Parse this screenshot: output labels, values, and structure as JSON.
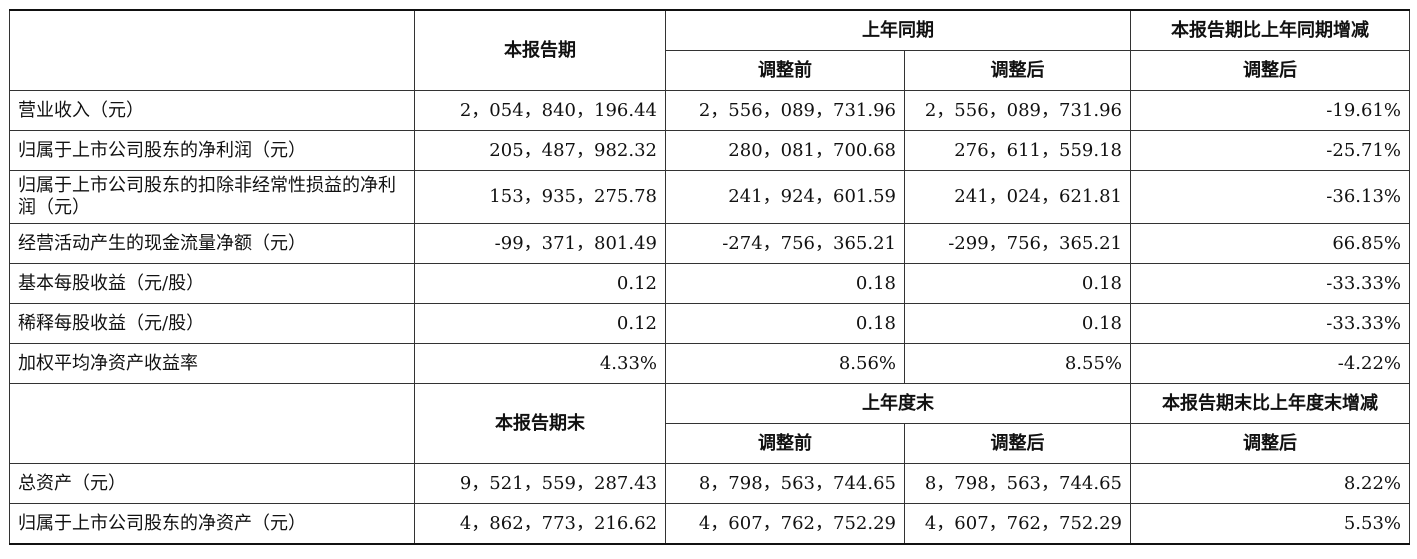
{
  "header1": {
    "current_period": "本报告期",
    "prior_period": "上年同期",
    "change": "本报告期比上年同期增减",
    "before_adjust": "调整前",
    "after_adjust": "调整后",
    "change_adjusted": "调整后"
  },
  "rows1": [
    {
      "label": "营业收入（元）",
      "current": "2，054，840，196.44",
      "before": "2，556，089，731.96",
      "after": "2，556，089，731.96",
      "change": "-19.61%"
    },
    {
      "label": "归属于上市公司股东的净利润（元）",
      "current": "205，487，982.32",
      "before": "280，081，700.68",
      "after": "276，611，559.18",
      "change": "-25.71%"
    },
    {
      "label": "归属于上市公司股东的扣除非经常性损益的净利润（元）",
      "current": "153，935，275.78",
      "before": "241，924，601.59",
      "after": "241，024，621.81",
      "change": "-36.13%"
    },
    {
      "label": "经营活动产生的现金流量净额（元）",
      "current": "-99，371，801.49",
      "before": "-274，756，365.21",
      "after": "-299，756，365.21",
      "change": "66.85%"
    },
    {
      "label": "基本每股收益（元/股）",
      "current": "0.12",
      "before": "0.18",
      "after": "0.18",
      "change": "-33.33%"
    },
    {
      "label": "稀释每股收益（元/股）",
      "current": "0.12",
      "before": "0.18",
      "after": "0.18",
      "change": "-33.33%"
    },
    {
      "label": "加权平均净资产收益率",
      "current": "4.33%",
      "before": "8.56%",
      "after": "8.55%",
      "change": "-4.22%"
    }
  ],
  "header2": {
    "current_period_end": "本报告期末",
    "prior_year_end": "上年度末",
    "change": "本报告期末比上年度末增减",
    "before_adjust": "调整前",
    "after_adjust": "调整后",
    "change_adjusted": "调整后"
  },
  "rows2": [
    {
      "label": "总资产（元）",
      "current": "9，521，559，287.43",
      "before": "8，798，563，744.65",
      "after": "8，798，563，744.65",
      "change": "8.22%"
    },
    {
      "label": "归属于上市公司股东的净资产（元）",
      "current": "4，862，773，216.62",
      "before": "4，607，762，752.29",
      "after": "4，607，762，752.29",
      "change": "5.53%"
    }
  ]
}
